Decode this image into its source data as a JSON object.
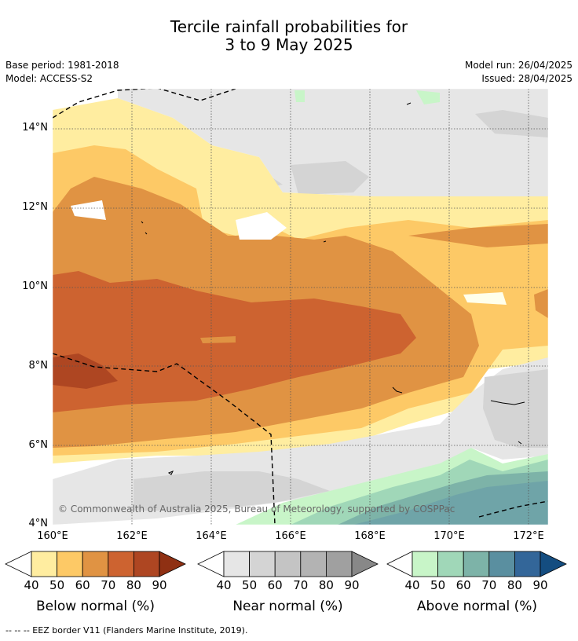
{
  "title_line1": "Tercile rainfall probabilities for",
  "title_line2": "3 to 9 May 2025",
  "base_period": "Base period: 1981-2018",
  "model": "Model: ACCESS-S2",
  "model_run": "Model run: 26/04/2025",
  "issued": "Issued: 28/04/2025",
  "copyright": "© Commonwealth of Australia 2025, Bureau of Meteorology, supported by COSPPac",
  "footnote": "--  --  -- EEZ border V11 (Flanders Marine Institute, 2019).",
  "lat_labels": [
    "14°N",
    "12°N",
    "10°N",
    "8°N",
    "6°N",
    "4°N"
  ],
  "lon_labels": [
    "160°E",
    "162°E",
    "164°E",
    "166°E",
    "168°E",
    "170°E",
    "172°E"
  ],
  "legends": {
    "below": {
      "title": "Below normal (%)",
      "ticks": [
        "40",
        "50",
        "60",
        "70",
        "80",
        "90"
      ],
      "colors": [
        "#ffeda0",
        "#fdc966",
        "#e09343",
        "#cd6330",
        "#ae4622",
        "#8f3013"
      ]
    },
    "near": {
      "title": "Near normal (%)",
      "ticks": [
        "40",
        "50",
        "60",
        "70",
        "80",
        "90"
      ],
      "colors": [
        "#e6e6e6",
        "#d4d4d4",
        "#c4c4c4",
        "#b3b3b3",
        "#a0a0a0",
        "#888888"
      ]
    },
    "above": {
      "title": "Above normal (%)",
      "ticks": [
        "40",
        "50",
        "60",
        "70",
        "80",
        "90"
      ],
      "colors": [
        "#c8f5c8",
        "#a0d7b8",
        "#7db3a8",
        "#5a8fa0",
        "#336699",
        "#144d80"
      ]
    }
  }
}
